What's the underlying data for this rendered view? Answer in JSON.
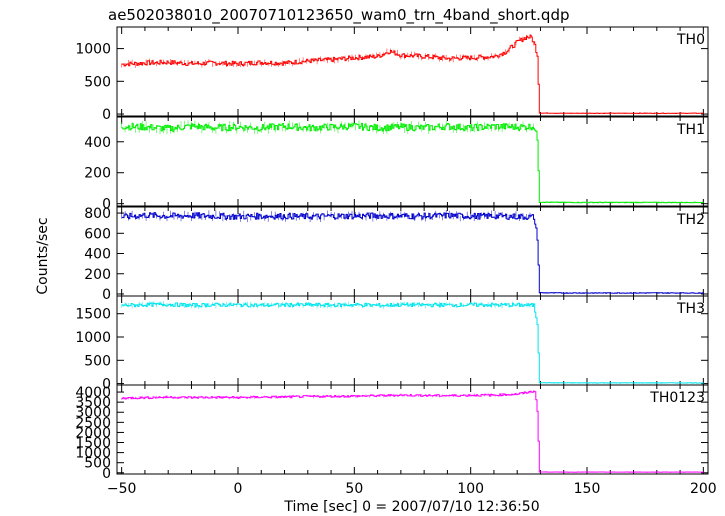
{
  "title": "ae502038010_20070710123650_wam0_trn_4band_short.qdp",
  "xlabel": "Time [sec] 0 = 2007/07/10 12:36:50",
  "ylabel": "Counts/sec",
  "chart_data": {
    "type": "line",
    "title": "ae502038010_20070710123650_wam0_trn_4band_short.qdp",
    "xlabel": "Time [sec] 0 = 2007/07/10 12:36:50",
    "ylabel": "Counts/sec",
    "xlim": [
      -52,
      202
    ],
    "xticks": [
      -50,
      0,
      50,
      100,
      150,
      200
    ],
    "xtick_labels": [
      "−50",
      "0",
      "50",
      "100",
      "150",
      "200"
    ],
    "grid": false,
    "panels": [
      {
        "name": "TH0",
        "color": "#ff0000",
        "ylim": [
          -30,
          1330
        ],
        "yticks": [
          0,
          500,
          1000
        ],
        "ytick_labels": [
          "0",
          "500",
          "1000"
        ],
        "x": [
          -50,
          -40,
          -30,
          -20,
          -10,
          0,
          10,
          20,
          30,
          40,
          50,
          60,
          65,
          70,
          80,
          90,
          100,
          110,
          115,
          120,
          124,
          126,
          127.5,
          128.5,
          129.5,
          140,
          150,
          160,
          170,
          180,
          190,
          200
        ],
        "y": [
          760,
          780,
          790,
          770,
          780,
          770,
          790,
          780,
          810,
          830,
          860,
          880,
          960,
          900,
          880,
          850,
          860,
          880,
          950,
          1100,
          1180,
          1170,
          1050,
          900,
          15,
          12,
          12,
          12,
          12,
          12,
          12,
          12
        ],
        "noise": 35
      },
      {
        "name": "TH1",
        "color": "#00ee00",
        "ylim": [
          -15,
          560
        ],
        "yticks": [
          0,
          200,
          400
        ],
        "ytick_labels": [
          "0",
          "200",
          "400"
        ],
        "x": [
          -50,
          -40,
          -30,
          -20,
          -10,
          0,
          10,
          20,
          30,
          40,
          50,
          60,
          70,
          80,
          90,
          100,
          110,
          120,
          127,
          128.5,
          129.5,
          140,
          150,
          160,
          170,
          180,
          190,
          200
        ],
        "y": [
          500,
          495,
          485,
          500,
          490,
          495,
          490,
          500,
          490,
          495,
          500,
          490,
          495,
          490,
          500,
          490,
          500,
          495,
          500,
          420,
          10,
          8,
          8,
          8,
          8,
          8,
          8,
          8
        ],
        "noise": 22
      },
      {
        "name": "TH2",
        "color": "#0000cc",
        "ylim": [
          -20,
          860
        ],
        "yticks": [
          0,
          200,
          400,
          600,
          800
        ],
        "ytick_labels": [
          "0",
          "200",
          "400",
          "600",
          "800"
        ],
        "x": [
          -50,
          -40,
          -30,
          -20,
          -10,
          0,
          10,
          20,
          30,
          40,
          50,
          60,
          70,
          80,
          90,
          100,
          110,
          120,
          127,
          128.5,
          129.5,
          140,
          150,
          160,
          170,
          180,
          190,
          200
        ],
        "y": [
          760,
          780,
          770,
          775,
          770,
          765,
          770,
          770,
          765,
          770,
          770,
          775,
          770,
          770,
          775,
          770,
          770,
          765,
          760,
          560,
          12,
          10,
          10,
          10,
          10,
          10,
          10,
          10
        ],
        "noise": 30
      },
      {
        "name": "TH3",
        "color": "#00e5ee",
        "ylim": [
          -30,
          1880
        ],
        "yticks": [
          0,
          500,
          1000,
          1500
        ],
        "ytick_labels": [
          "0",
          "500",
          "1000",
          "1500"
        ],
        "x": [
          -50,
          -40,
          -30,
          -20,
          -10,
          0,
          10,
          20,
          30,
          40,
          50,
          60,
          70,
          80,
          90,
          100,
          110,
          120,
          127,
          128.5,
          129.5,
          140,
          150,
          160,
          170,
          180,
          190,
          200
        ],
        "y": [
          1680,
          1690,
          1700,
          1680,
          1690,
          1690,
          1680,
          1690,
          1690,
          1685,
          1690,
          1680,
          1690,
          1690,
          1685,
          1690,
          1690,
          1685,
          1680,
          1300,
          20,
          15,
          15,
          15,
          15,
          15,
          15,
          15
        ],
        "noise": 40
      },
      {
        "name": "TH0123",
        "color": "#ff00ff",
        "ylim": [
          -60,
          4350
        ],
        "yticks": [
          0,
          500,
          1000,
          1500,
          2000,
          2500,
          3000,
          3500,
          4000
        ],
        "ytick_labels": [
          "0",
          "500",
          "1000",
          "1500",
          "2000",
          "2500",
          "3000",
          "3500",
          "4000"
        ],
        "x": [
          -50,
          -40,
          -30,
          -20,
          -10,
          0,
          10,
          20,
          30,
          40,
          50,
          60,
          70,
          80,
          90,
          100,
          110,
          120,
          125,
          127.5,
          128.5,
          129.5,
          140,
          150,
          160,
          170,
          180,
          190,
          200
        ],
        "y": [
          3700,
          3720,
          3750,
          3730,
          3740,
          3730,
          3750,
          3760,
          3780,
          3790,
          3800,
          3820,
          3850,
          3830,
          3820,
          3840,
          3850,
          3900,
          4000,
          4050,
          3100,
          40,
          35,
          35,
          35,
          35,
          35,
          35,
          35
        ],
        "noise": 50
      }
    ]
  }
}
